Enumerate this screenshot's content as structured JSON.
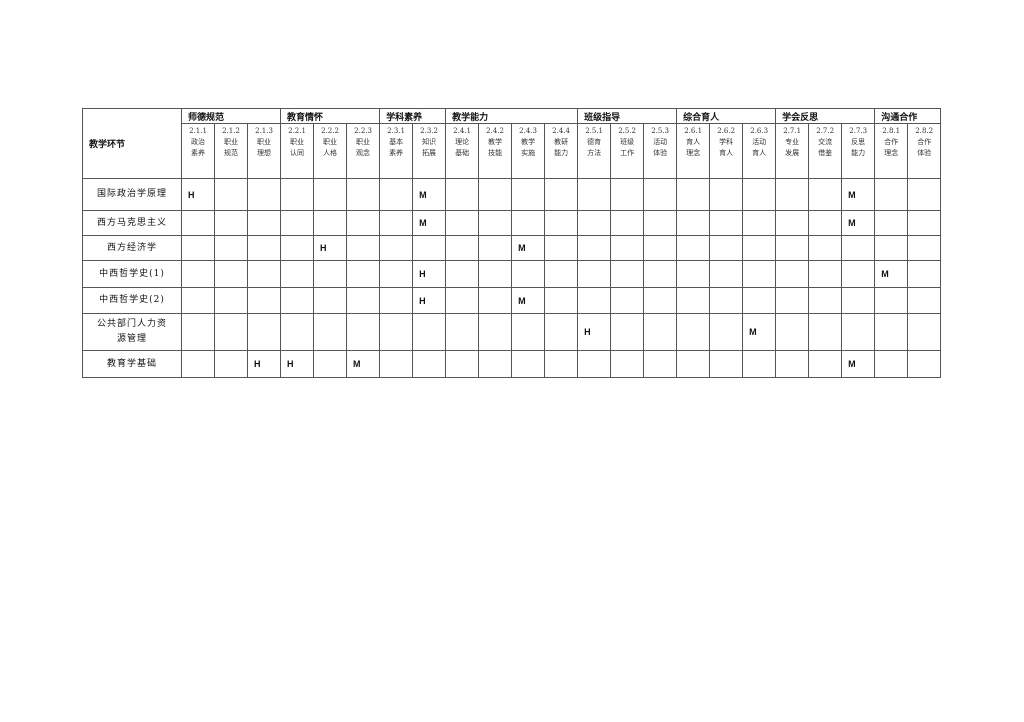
{
  "table": {
    "corner_label": "教学环节",
    "groups": [
      {
        "label": "师德规范",
        "subs": [
          {
            "code": "2.1.1",
            "name": "政治素养"
          },
          {
            "code": "2.1.2",
            "name": "职业规范"
          },
          {
            "code": "2.1.3",
            "name": "职业理想"
          }
        ]
      },
      {
        "label": "教育情怀",
        "subs": [
          {
            "code": "2.2.1",
            "name": "职业认同"
          },
          {
            "code": "2.2.2",
            "name": "职业人格"
          },
          {
            "code": "2.2.3",
            "name": "职业观念"
          }
        ]
      },
      {
        "label": "学科素养",
        "subs": [
          {
            "code": "2.3.1",
            "name": "基本素养"
          },
          {
            "code": "2.3.2",
            "name": "知识拓展"
          }
        ]
      },
      {
        "label": "教学能力",
        "subs": [
          {
            "code": "2.4.1",
            "name": "理论基础"
          },
          {
            "code": "2.4.2",
            "name": "教学技能"
          },
          {
            "code": "2.4.3",
            "name": "教学实施"
          },
          {
            "code": "2.4.4",
            "name": "教研能力"
          }
        ]
      },
      {
        "label": "班级指导",
        "subs": [
          {
            "code": "2.5.1",
            "name": "德育方法"
          },
          {
            "code": "2.5.2",
            "name": "班级工作"
          },
          {
            "code": "2.5.3",
            "name": "活动体验"
          }
        ]
      },
      {
        "label": "综合育人",
        "subs": [
          {
            "code": "2.6.1",
            "name": "育人理念"
          },
          {
            "code": "2.6.2",
            "name": "学科育人"
          },
          {
            "code": "2.6.3",
            "name": "活动育人"
          }
        ]
      },
      {
        "label": "学会反思",
        "subs": [
          {
            "code": "2.7.1",
            "name": "专业发展"
          },
          {
            "code": "2.7.2",
            "name": "交流借鉴"
          },
          {
            "code": "2.7.3",
            "name": "反思能力"
          }
        ]
      },
      {
        "label": "沟通合作",
        "subs": [
          {
            "code": "2.8.1",
            "name": "合作理念"
          },
          {
            "code": "2.8.2",
            "name": "合作体验"
          }
        ]
      }
    ],
    "rows": [
      {
        "course": "国际政治学原理",
        "marks": {
          "2.1.1": "H",
          "2.3.2": "M",
          "2.7.3": "M"
        }
      },
      {
        "course": "西方马克思主义",
        "marks": {
          "2.3.2": "M",
          "2.7.3": "M"
        }
      },
      {
        "course": "西方经济学",
        "marks": {
          "2.2.2": "H",
          "2.4.3": "M"
        }
      },
      {
        "course": "中西哲学史(1)",
        "marks": {
          "2.3.2": "H",
          "2.8.1": "M"
        }
      },
      {
        "course": "中西哲学史(2)",
        "marks": {
          "2.3.2": "H",
          "2.4.3": "M"
        }
      },
      {
        "course": "公共部门人力资源管理",
        "marks": {
          "2.5.1": "H",
          "2.6.3": "M"
        }
      },
      {
        "course": "教育学基础",
        "marks": {
          "2.1.3": "H",
          "2.2.1": "H",
          "2.2.3": "M",
          "2.7.3": "M"
        }
      }
    ]
  }
}
